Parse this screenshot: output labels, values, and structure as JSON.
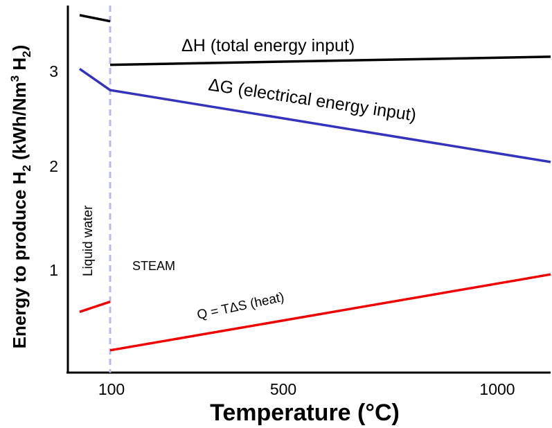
{
  "chart_data": {
    "type": "line",
    "title": "",
    "xlabel": "Temperature (°C)",
    "ylabel_parts": [
      "Energy to produce H",
      "2",
      " (kWh/Nm",
      "3",
      " H",
      "2",
      ")"
    ],
    "x_ticks": [
      "100",
      "500",
      "1000"
    ],
    "y_ticks": [
      "1",
      "2",
      "3"
    ],
    "xlim": [
      0,
      1050
    ],
    "ylim": [
      0,
      3.5
    ],
    "phase_boundary_x": 100,
    "series": [
      {
        "name": "ΔH (total energy input)",
        "color": "#000000",
        "x": [
          0,
          100
        ],
        "y": [
          3.53,
          3.47
        ]
      },
      {
        "name": "ΔH (total energy input)",
        "color": "#000000",
        "x": [
          100,
          1050
        ],
        "y": [
          3.04,
          3.12
        ]
      },
      {
        "name": "ΔG (electrical energy input)",
        "color": "#3333bb",
        "x": [
          0,
          100,
          1050
        ],
        "y": [
          3.0,
          2.79,
          2.08
        ]
      },
      {
        "name": "Q = TΔS (heat)",
        "color": "#ee0000",
        "x": [
          0,
          100
        ],
        "y": [
          0.6,
          0.7
        ]
      },
      {
        "name": "Q = TΔS (heat)",
        "color": "#ee0000",
        "x": [
          100,
          1050
        ],
        "y": [
          0.22,
          0.97
        ]
      }
    ],
    "annotations": {
      "liquid": "Liquid water",
      "steam": "STEAM"
    }
  }
}
